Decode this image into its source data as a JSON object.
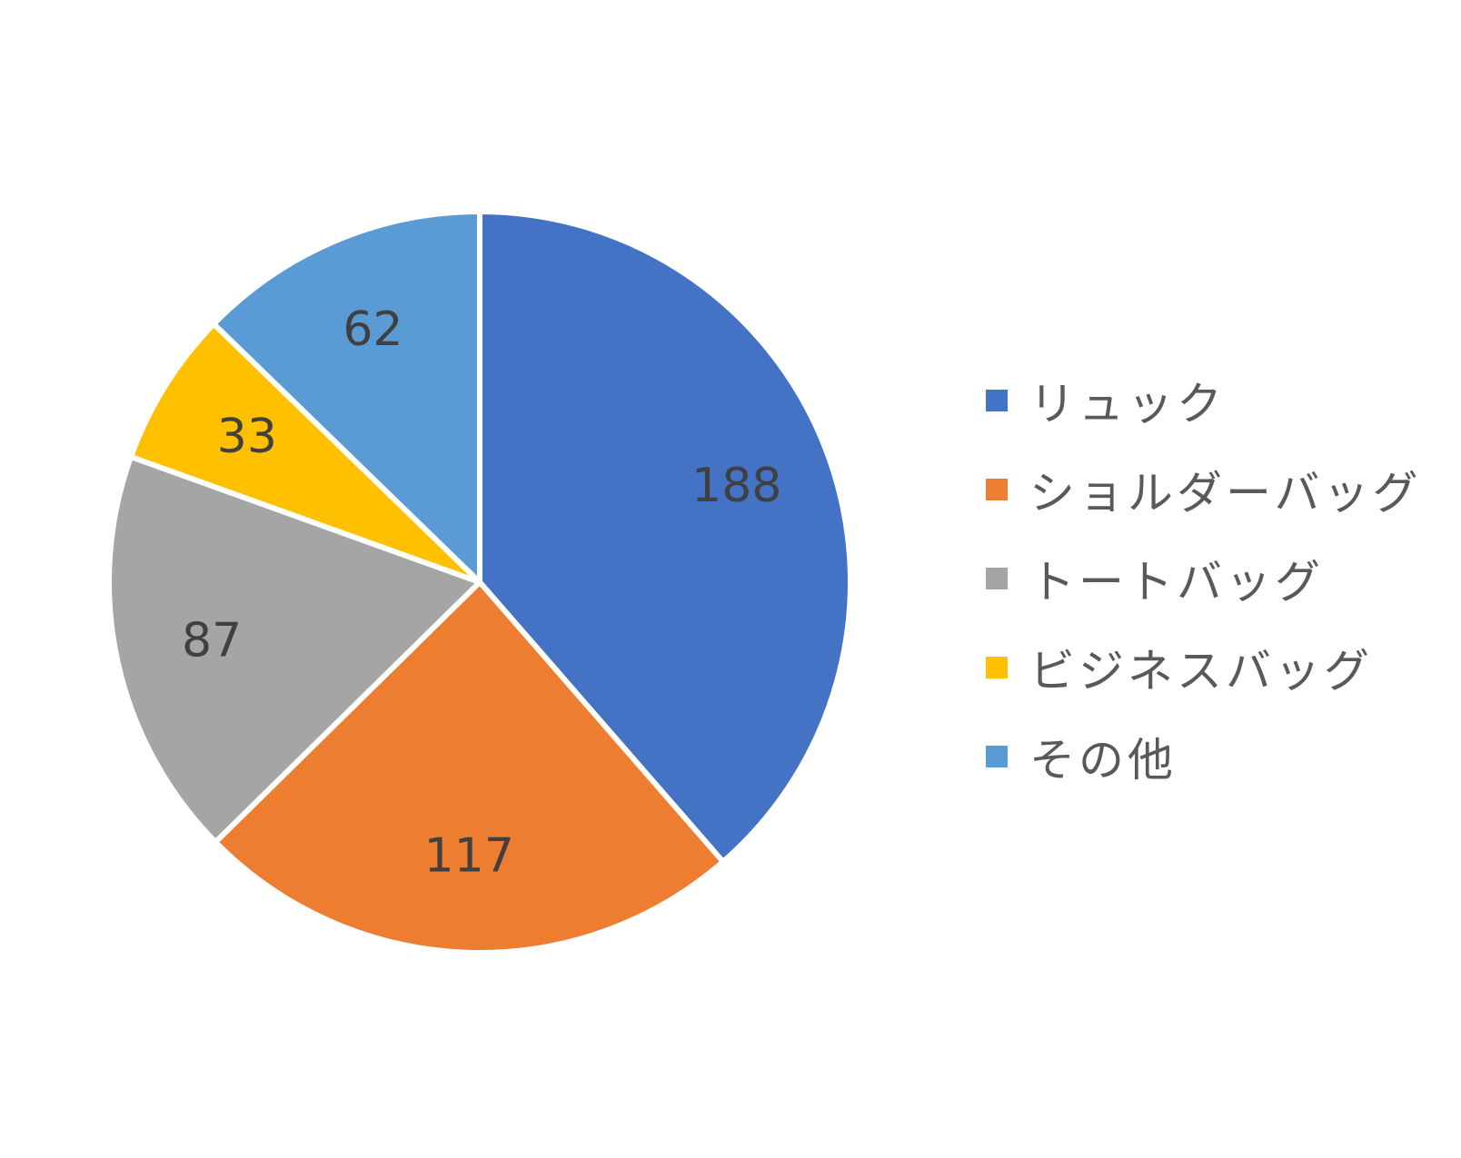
{
  "chart_data": {
    "type": "pie",
    "categories": [
      "リュック",
      "ショルダーバッグ",
      "トートバッグ",
      "ビジネスバッグ",
      "その他"
    ],
    "values": [
      188,
      117,
      87,
      33,
      62
    ],
    "colors": [
      "#4472C4",
      "#ED7D31",
      "#A5A5A5",
      "#FFC000",
      "#5B9BD5"
    ],
    "data_labels": [
      "188",
      "117",
      "87",
      "33",
      "62"
    ],
    "legend_position": "right",
    "start_angle_deg": 0,
    "direction": "clockwise"
  }
}
